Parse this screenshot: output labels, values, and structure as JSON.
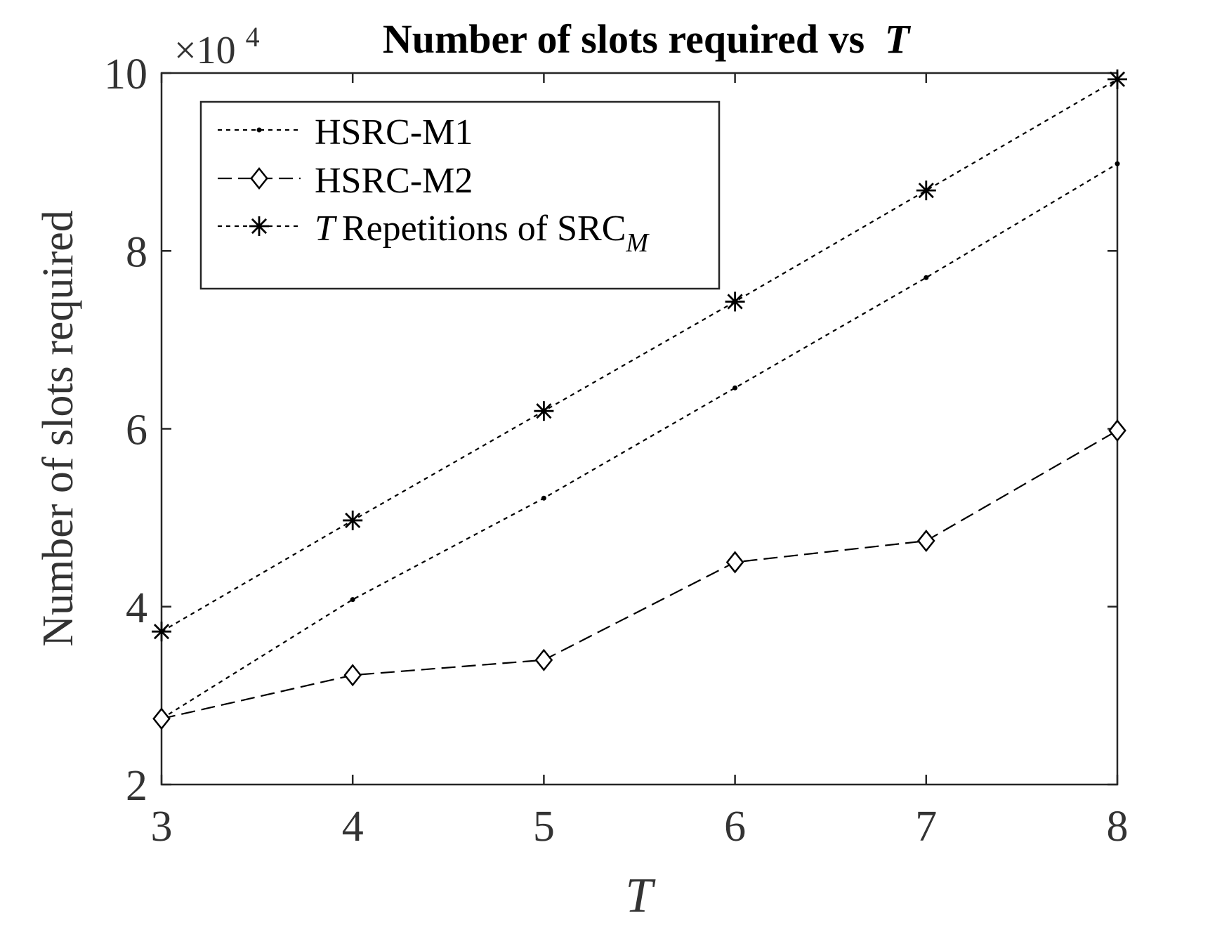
{
  "chart_data": {
    "type": "line",
    "title": "Number of slots required vs",
    "title_var": "T",
    "xlabel": "T",
    "ylabel": "Number of slots required",
    "y_multiplier": {
      "base": "×10",
      "exponent": "4"
    },
    "x": [
      3,
      4,
      5,
      6,
      7,
      8
    ],
    "xlim": [
      3,
      8
    ],
    "ylim": [
      2,
      10
    ],
    "x_ticks": [
      "3",
      "4",
      "5",
      "6",
      "7",
      "8"
    ],
    "y_ticks": [
      {
        "value": 2,
        "label": "2"
      },
      {
        "value": 4,
        "label": "4"
      },
      {
        "value": 6,
        "label": "6"
      },
      {
        "value": 8,
        "label": "8"
      },
      {
        "value": 10,
        "label": "10"
      }
    ],
    "grid": false,
    "legend_position": "top-left",
    "series": [
      {
        "name": "HSRC-M1",
        "marker": "dot",
        "dash": "dotted",
        "values": [
          2.74,
          4.08,
          5.22,
          6.46,
          7.7,
          8.98
        ]
      },
      {
        "name": "HSRC-M2",
        "marker": "diamond",
        "dash": "dashed",
        "values": [
          2.74,
          3.23,
          3.4,
          4.5,
          4.74,
          5.98
        ]
      },
      {
        "name_italic": "T",
        "name": "Repetitions of SRC",
        "name_sub": "M",
        "marker": "asterisk",
        "dash": "dotted",
        "values": [
          3.72,
          4.97,
          6.2,
          7.43,
          8.68,
          9.93
        ]
      }
    ]
  }
}
